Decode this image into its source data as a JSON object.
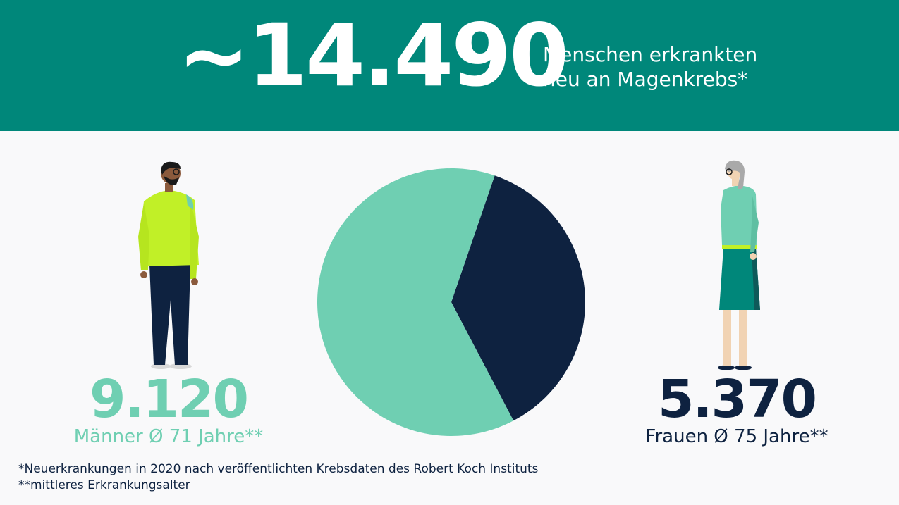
{
  "header": {
    "big_number": "~14.490",
    "line1": "Menschen erkrankten",
    "line2": "neu an Magenkrebs*"
  },
  "stats": {
    "men_value": "9.120",
    "men_label": "Männer Ø 71 Jahre**",
    "women_value": "5.370",
    "women_label": "Frauen Ø 75 Jahre**"
  },
  "footnotes": {
    "note1": "*Neuerkrankungen in 2020 nach veröffentlichten Krebsdaten des Robert Koch Instituts",
    "note2": "**mittleres Erkrankungsalter"
  },
  "colors": {
    "banner": "#00877a",
    "men": "#6fcfb2",
    "women": "#0e2240"
  },
  "icons": [
    "man-figure-icon",
    "woman-figure-icon"
  ],
  "chart_data": {
    "type": "pie",
    "categories": [
      "Männer",
      "Frauen"
    ],
    "values": [
      9120,
      5370
    ],
    "total": 14490,
    "colors": [
      "#6fcfb2",
      "#0e2240"
    ]
  }
}
